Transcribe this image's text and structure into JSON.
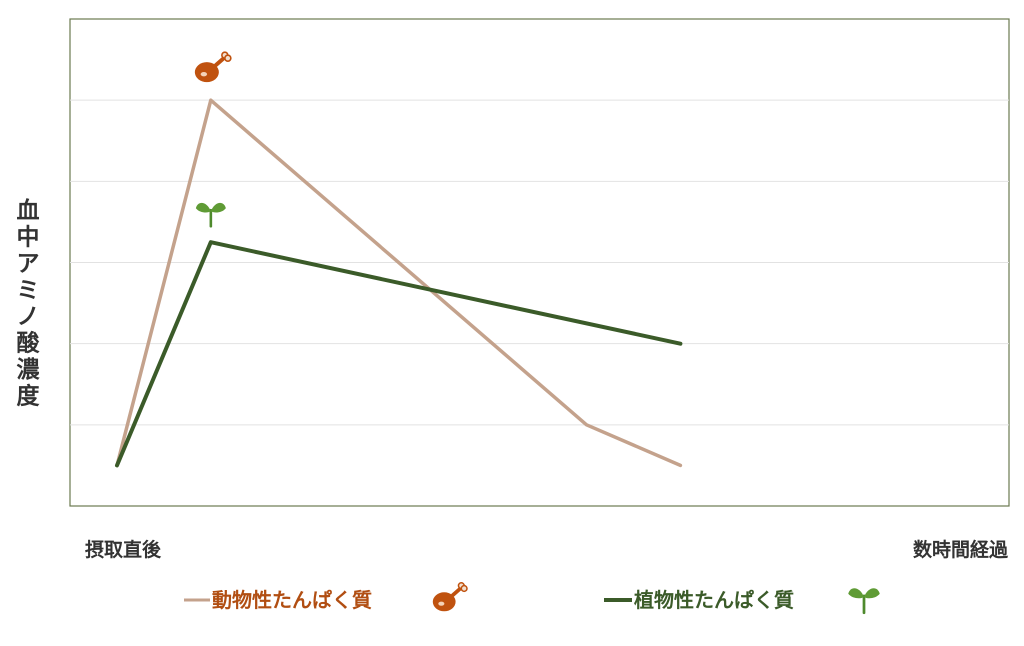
{
  "chart_data": {
    "type": "line",
    "ylabel": "血中アミノ酸濃度",
    "x_tick_labels": [
      "摂取直後",
      "数時間経過"
    ],
    "x_extent": [
      0,
      10
    ],
    "ylim": [
      0,
      6
    ],
    "grid": true,
    "legend_position": "bottom",
    "series": [
      {
        "name": "動物性たんぱく質",
        "color": "#c4a28c",
        "text_color": "#b14e12",
        "icon": "meat-icon",
        "x": [
          0.5,
          1.5,
          5.5,
          6.5
        ],
        "y": [
          0.5,
          5.0,
          1.0,
          0.5
        ]
      },
      {
        "name": "植物性たんぱく質",
        "color": "#3b5b29",
        "text_color": "#3b5b29",
        "icon": "sprout-icon",
        "x": [
          0.5,
          1.5,
          6.5
        ],
        "y": [
          0.5,
          3.25,
          2.0
        ]
      }
    ]
  }
}
